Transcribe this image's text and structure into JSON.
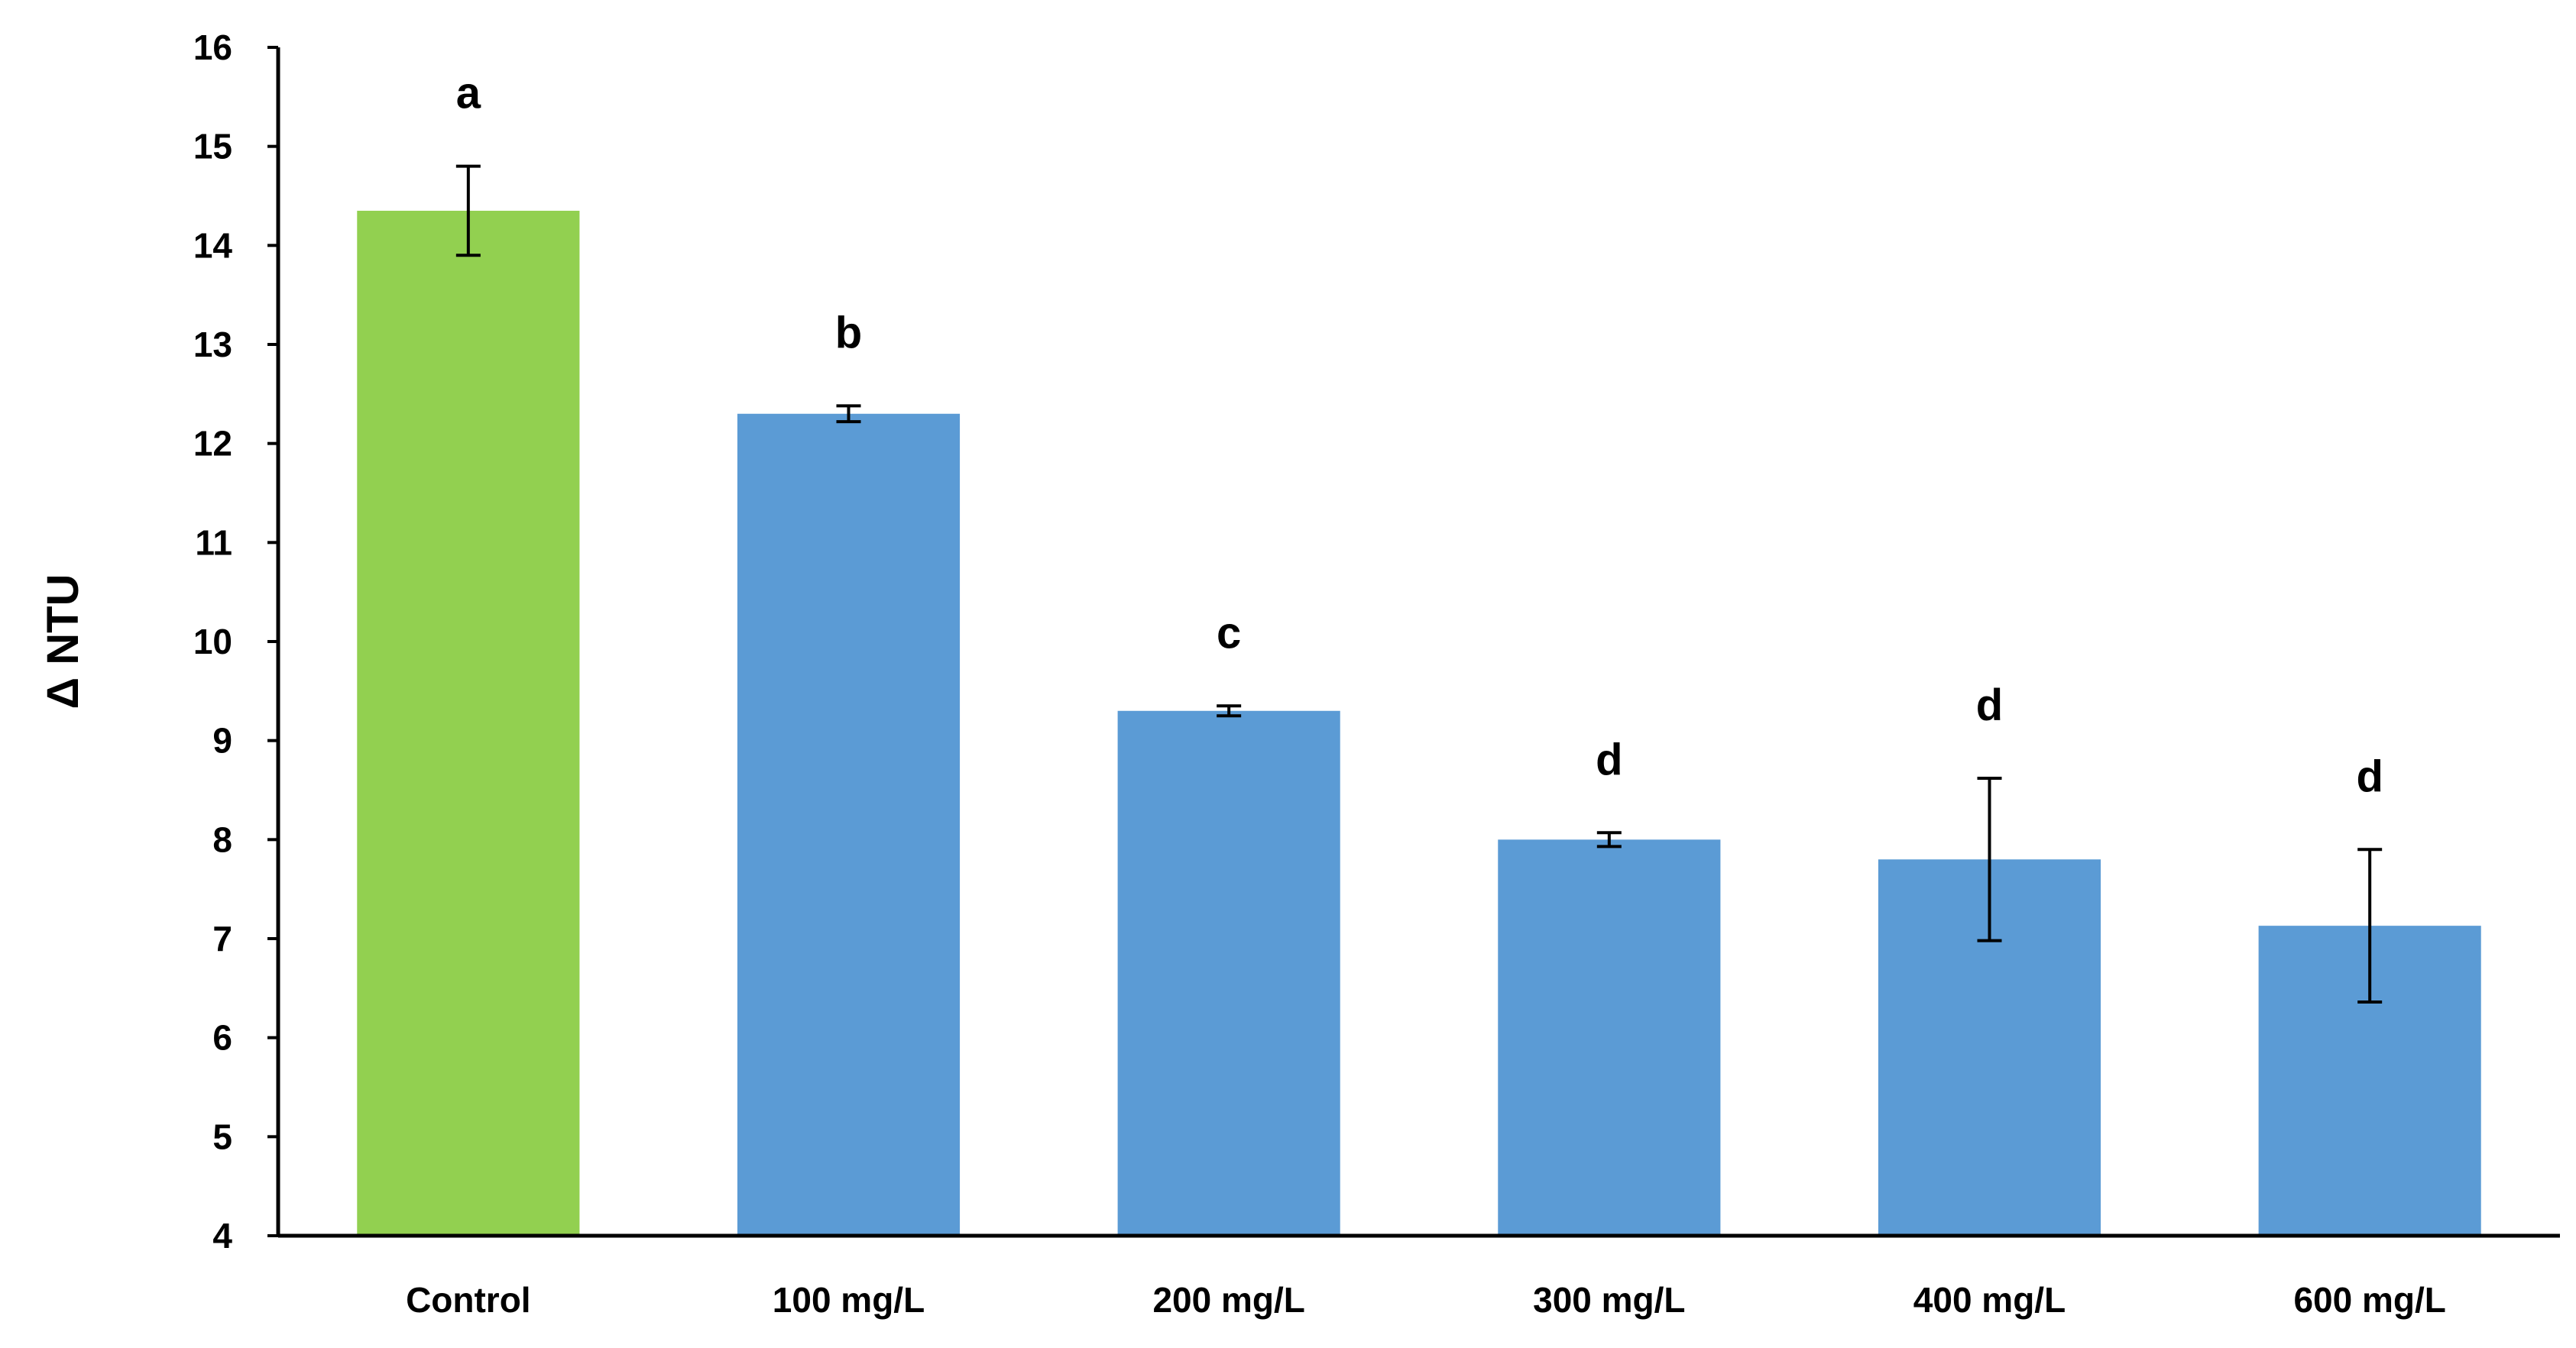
{
  "chart_data": {
    "type": "bar",
    "title": "",
    "xlabel": "",
    "ylabel": "Δ NTU",
    "ylim": [
      4,
      16
    ],
    "yticks": [
      4,
      5,
      6,
      7,
      8,
      9,
      10,
      11,
      12,
      13,
      14,
      15,
      16
    ],
    "grid": false,
    "legend": "none",
    "categories": [
      "Control",
      "100 mg/L",
      "200 mg/L",
      "300 mg/L",
      "400 mg/L",
      "600 mg/L"
    ],
    "values": [
      14.35,
      12.3,
      9.3,
      8.0,
      7.8,
      7.13
    ],
    "error": [
      0.45,
      0.08,
      0.05,
      0.07,
      0.82,
      0.77
    ],
    "significance": [
      "a",
      "b",
      "c",
      "d",
      "d",
      "d"
    ],
    "colors": [
      "#92d050",
      "#5b9bd5",
      "#5b9bd5",
      "#5b9bd5",
      "#5b9bd5",
      "#5b9bd5"
    ]
  }
}
